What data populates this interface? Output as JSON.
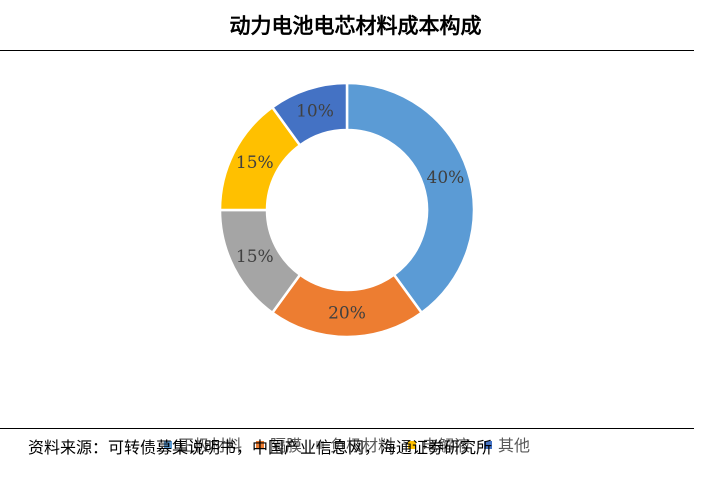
{
  "title": "动力电池电芯材料成本构成",
  "source": "资料来源：可转债募集说明书，中国产业信息网，海通证券研究所",
  "chart_data": {
    "type": "pie",
    "title": "动力电池电芯材料成本构成",
    "legend_position": "bottom",
    "categories": [
      "正极材料",
      "隔膜",
      "负极材料",
      "电解液",
      "其他"
    ],
    "values": [
      40,
      20,
      15,
      15,
      10
    ],
    "labels": [
      "40%",
      "20%",
      "15%",
      "15%",
      "10%"
    ],
    "colors": [
      "#5B9BD5",
      "#ED7D31",
      "#A5A5A5",
      "#FFC000",
      "#4472C4"
    ]
  }
}
